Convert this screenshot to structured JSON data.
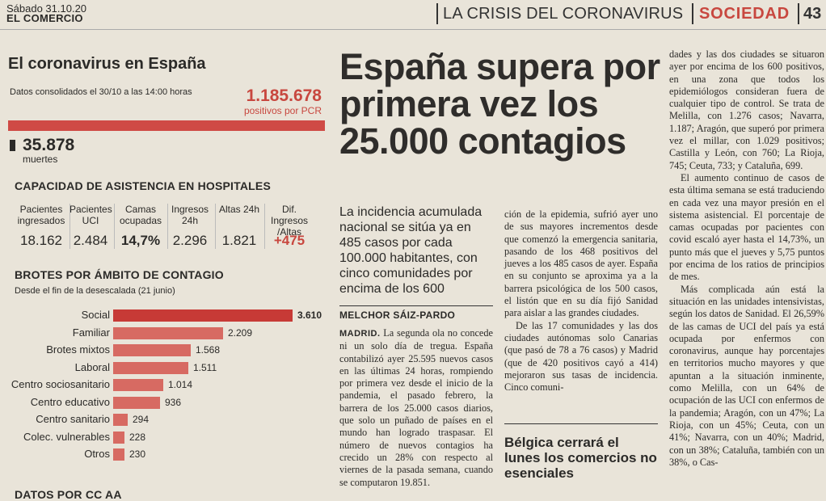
{
  "masthead": {
    "date": "Sábado 31.10.20",
    "paper": "EL COMERCIO",
    "crisis": "LA CRISIS DEL CORONAVIRUS",
    "section": "SOCIEDAD",
    "page": "43"
  },
  "infographic": {
    "title": "El coronavirus en España",
    "subtitle": "Datos consolidados el 30/10 a las 14:00 horas",
    "total_value": "1.185.678",
    "total_label": "positivos por PCR",
    "deaths_value": "35.878",
    "deaths_label": "muertes",
    "hospital": {
      "title": "CAPACIDAD DE ASISTENCIA EN HOSPITALES",
      "columns": [
        {
          "header": "Pacientes ingresados",
          "value": "18.162"
        },
        {
          "header": "Pacientes UCI",
          "value": "2.484"
        },
        {
          "header": "Camas ocupadas",
          "value": "14,7%"
        },
        {
          "header": "Ingresos 24h",
          "value": "2.296"
        },
        {
          "header": "Altas 24h",
          "value": "1.821"
        },
        {
          "header": "Dif. Ingresos /Altas",
          "value": "+475"
        }
      ]
    },
    "brotes": {
      "title": "BROTES POR ÁMBITO DE CONTAGIO",
      "subtitle": "Desde el fin de la desescalada (21 junio)"
    },
    "cc_title": "DATOS POR CC AA"
  },
  "chart_data": {
    "type": "bar",
    "orientation": "horizontal",
    "categories": [
      "Social",
      "Familiar",
      "Brotes mixtos",
      "Laboral",
      "Centro sociosanitario",
      "Centro educativo",
      "Centro sanitario",
      "Colec. vulnerables",
      "Otros"
    ],
    "values": [
      3610,
      2209,
      1568,
      1511,
      1014,
      936,
      294,
      228,
      230
    ],
    "value_labels": [
      "3.610",
      "2.209",
      "1.568",
      "1.511",
      "1.014",
      "936",
      "294",
      "228",
      "230"
    ],
    "colors": {
      "top": "#c73a36",
      "rest": "#d76a62"
    }
  },
  "article": {
    "headline": "España supera por primera vez los 25.000 contagios",
    "lede": "La incidencia acumulada nacional se sitúa ya en 485 casos por cada 100.000 habitantes, con cinco comunidades por encima de los 600",
    "byline": "MELCHOR SÁIZ-PARDO",
    "dateline": "MADRID.",
    "col1": "La segunda ola no concede ni un solo día de tregua. España contabilizó ayer 25.595 nuevos casos en las últimas 24 horas, rompiendo por primera vez desde el inicio de la pandemia, el pasado febrero, la barrera de los 25.000 casos diarios, que solo un puñado de países en el mundo han logrado traspasar. El número de nuevos contagios ha crecido un 28% con respecto al viernes de la pasada semana, cuando se computaron 19.851.",
    "col2_p1": "ción de la epidemia, sufrió ayer uno de sus mayores incrementos desde que comenzó la emergencia sanitaria, pasando de los 468 positivos del jueves a los 485 casos de ayer. España en su conjunto se aproxima ya a la barrera psicológica de los 500 casos, el listón que en su día fijó Sanidad para aislar a las grandes ciudades.",
    "col2_p2": "De las 17 comunidades y las dos ciudades autónomas solo Canarias (que pasó de 78 a 76 casos) y Madrid (que de 420 positivos cayó a 414) mejoraron sus tasas de incidencia. Cinco comuni-",
    "sub_headline": "Bélgica cerrará el lunes los comercios no esenciales",
    "col3_p1": "dades y las dos ciudades se situaron ayer por encima de los 600 positivos, en una zona que todos los epidemiólogos consideran fuera de cualquier tipo de control. Se trata de Melilla, con 1.276 casos; Navarra, 1.187; Aragón, que superó por primera vez el millar, con 1.029 positivos; Castilla y León, con 760; La Rioja, 745; Ceuta, 733; y Cataluña, 699.",
    "col3_p2": "El aumento continuo de casos de esta última semana se está traduciendo en cada vez una mayor presión en el sistema asistencial. El porcentaje de camas ocupadas por pacientes con covid escaló ayer hasta el 14,73%, un punto más que el jueves y 5,75 puntos por encima de los ratios de principios de mes.",
    "col3_p3": "Más complicada aún está la situación en las unidades intensivistas, según los datos de Sanidad. El 26,59% de las camas de UCI del país ya está ocupada por enfermos con coronavirus, aunque hay porcentajes en territorios mucho mayores y que apuntan a la situación inminente, como Melilla, con un 64% de ocupación de las UCI con enfermos de la pandemia; Aragón, con un 47%; La Rioja, con un 45%; Ceuta, con un 41%; Navarra, con un 40%; Madrid, con un 38%; Cataluña, también con un 38%, o Cas-"
  }
}
